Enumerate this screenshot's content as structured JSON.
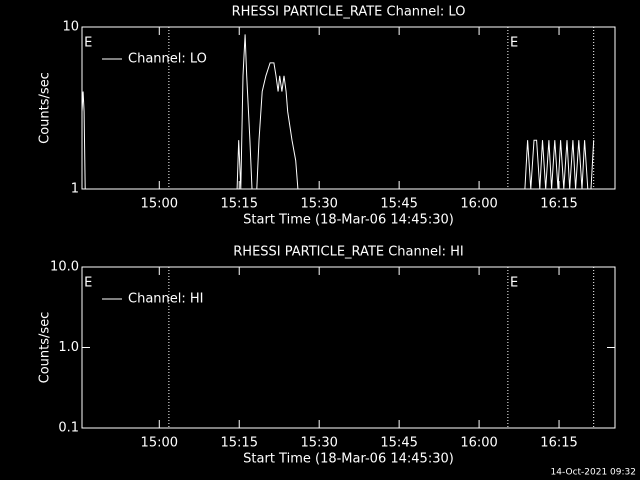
{
  "chart_data": [
    {
      "type": "line",
      "title": "RHESSI PARTICLE_RATE Channel: LO",
      "xlabel": "Start Time (18-Mar-06 14:45:30)",
      "ylabel": "Counts/sec",
      "log_y": true,
      "xlim": [
        0,
        100
      ],
      "ylim": [
        1,
        10
      ],
      "xticks": [
        {
          "value": 14.5,
          "label": "15:00"
        },
        {
          "value": 29.5,
          "label": "15:15"
        },
        {
          "value": 44.5,
          "label": "15:30"
        },
        {
          "value": 59.5,
          "label": "15:45"
        },
        {
          "value": 74.5,
          "label": "16:00"
        },
        {
          "value": 89.5,
          "label": "16:15"
        }
      ],
      "yticks": [
        1,
        10
      ],
      "vlines": [
        16.3,
        79.9,
        96.0
      ],
      "markers": [
        {
          "x": 0.4,
          "label": "E"
        },
        {
          "x": 80.3,
          "label": "E"
        }
      ],
      "legend": "upper left",
      "series": [
        {
          "name": "Channel: LO",
          "color": "#ffffff",
          "x": [
            0,
            0.2,
            0.4,
            0.6,
            29.1,
            29.4,
            29.8,
            30.2,
            30.6,
            30.9,
            31.5,
            31.9,
            32.8,
            33.2,
            33.8,
            34.5,
            35.3,
            36.0,
            36.4,
            36.8,
            37.1,
            37.5,
            37.9,
            38.3,
            38.6,
            39.4,
            40.1,
            40.5,
            83.1,
            83.6,
            84.2,
            84.8,
            85.3,
            85.9,
            86.4,
            87.0,
            87.6,
            88.1,
            88.7,
            89.3,
            89.8,
            90.4,
            91.0,
            91.5,
            92.1,
            92.6,
            93.2,
            93.8,
            94.3,
            94.9,
            95.5,
            96.0
          ],
          "values": [
            3,
            4,
            3,
            1,
            1,
            2,
            1,
            5,
            9,
            5,
            2,
            1,
            1,
            2,
            4,
            5,
            6,
            6,
            5,
            4,
            5,
            4,
            5,
            4,
            3,
            2,
            1.5,
            1,
            1,
            2,
            1,
            2,
            2,
            1,
            2,
            1,
            2,
            1,
            2,
            1,
            2,
            1,
            2,
            1,
            2,
            1,
            2,
            1,
            2,
            1,
            1,
            2
          ]
        }
      ]
    },
    {
      "type": "line",
      "title": "RHESSI PARTICLE_RATE Channel: HI",
      "xlabel": "Start Time (18-Mar-06 14:45:30)",
      "ylabel": "Counts/sec",
      "log_y": true,
      "xlim": [
        0,
        100
      ],
      "ylim": [
        0.1,
        10
      ],
      "xticks": [
        {
          "value": 14.5,
          "label": "15:00"
        },
        {
          "value": 29.5,
          "label": "15:15"
        },
        {
          "value": 44.5,
          "label": "15:30"
        },
        {
          "value": 59.5,
          "label": "15:45"
        },
        {
          "value": 74.5,
          "label": "16:00"
        },
        {
          "value": 89.5,
          "label": "16:15"
        }
      ],
      "yticks": [
        {
          "value": 0.1,
          "label": "0.1"
        },
        {
          "value": 1,
          "label": "1.0"
        },
        {
          "value": 10,
          "label": "10.0"
        }
      ],
      "vlines": [
        16.3,
        79.9,
        96.0
      ],
      "markers": [
        {
          "x": 0.4,
          "label": "E"
        },
        {
          "x": 80.3,
          "label": "E"
        }
      ],
      "legend": "upper left",
      "series": [
        {
          "name": "Channel: HI",
          "color": "#ffffff",
          "x": [],
          "values": []
        }
      ]
    }
  ],
  "footer": "14-Oct-2021 09:32"
}
